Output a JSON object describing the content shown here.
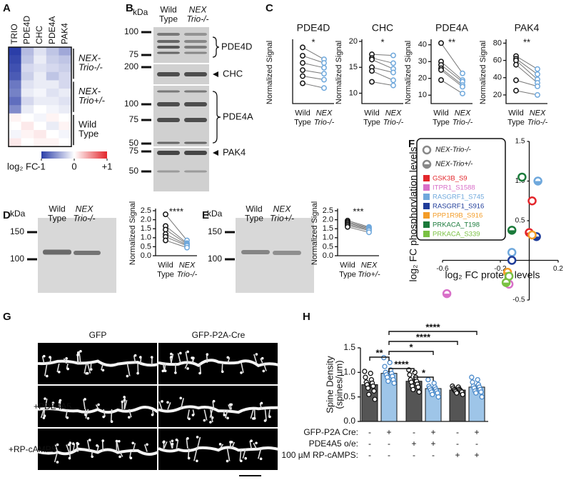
{
  "panel_labels": [
    "A",
    "B",
    "C",
    "D",
    "E",
    "F",
    "G",
    "H"
  ],
  "heatmap": {
    "columns": [
      "TRIO",
      "PDE4D",
      "CHC",
      "PDE4A",
      "PAK4"
    ],
    "groups": [
      {
        "label": "NEX-Trio-/-",
        "rows": [
          [
            -1,
            -0.35,
            -0.15,
            -0.3,
            -0.45
          ],
          [
            -0.95,
            -0.3,
            -0.1,
            -0.25,
            -0.3
          ],
          [
            -0.9,
            -0.2,
            -0.15,
            -0.2,
            -0.25
          ],
          [
            -0.85,
            -0.25,
            -0.1,
            -0.3,
            -0.2
          ]
        ]
      },
      {
        "label": "NEX-Trio+/-",
        "rows": [
          [
            -0.7,
            -0.15,
            -0.1,
            -0.1,
            -0.2
          ],
          [
            -0.65,
            -0.1,
            -0.05,
            -0.15,
            -0.1
          ],
          [
            -0.75,
            -0.2,
            -0.1,
            -0.1,
            -0.15
          ],
          [
            -0.6,
            -0.1,
            0,
            -0.05,
            -0.1
          ]
        ]
      },
      {
        "label": "Wild Type",
        "rows": [
          [
            0.05,
            0,
            -0.05,
            0.05,
            0
          ],
          [
            0,
            0.1,
            0,
            -0.1,
            0.05
          ],
          [
            -0.05,
            0.05,
            0.1,
            0,
            -0.05
          ],
          [
            0.1,
            0,
            0.05,
            0.05,
            0
          ]
        ]
      }
    ],
    "colorbar": {
      "label": "log₂ FC",
      "clim": [
        -1,
        1
      ],
      "ticks": [
        -1,
        0,
        {
          "value": 1,
          "label": "+1"
        }
      ]
    }
  },
  "blot_b": {
    "kda": "kDa",
    "lanes": [
      "Wild Type",
      "NEX Trio-/-"
    ],
    "markers": [
      100,
      75,
      200,
      100,
      75,
      50,
      75,
      50
    ],
    "proteins": [
      "PDE4D",
      "CHC",
      "PDE4A",
      "PAK4"
    ]
  },
  "blot_d": {
    "kda": "kDa",
    "lanes": [
      "Wild Type",
      "NEX Trio-/-"
    ],
    "markers": [
      150,
      100
    ]
  },
  "blot_e": {
    "kda": "kDa",
    "lanes": [
      "Wild Type",
      "NEX Trio+/-"
    ],
    "markers": [
      150,
      100
    ]
  },
  "images_g": {
    "columns": [
      "GFP",
      "GFP-P2A-Cre"
    ],
    "rows": [
      "+PDE4A5",
      "+RP-cAMPS"
    ]
  },
  "chart_data": [
    {
      "type": "paired",
      "title": "PDE4D",
      "ylabel": "Normalized Signal",
      "ylim": [
        10,
        62
      ],
      "annotation": "*",
      "series": [
        {
          "name": "Wild Type",
          "color": "#111111",
          "values": [
            57,
            50,
            44,
            38,
            33,
            27
          ]
        },
        {
          "name": "NEX Trio-/-",
          "color": "#6fa8dc",
          "values": [
            47,
            44,
            40,
            35,
            30,
            23
          ]
        }
      ]
    },
    {
      "type": "paired",
      "title": "CHC",
      "ylabel": "Normalized Signal",
      "ylim": [
        8,
        20
      ],
      "yticks": [
        10,
        15,
        20
      ],
      "annotation": "*",
      "series": [
        {
          "name": "Wild Type",
          "color": "#111111",
          "values": [
            17.5,
            16.8,
            16.5,
            15,
            14.3,
            12.2
          ]
        },
        {
          "name": "NEX Trio-/-",
          "color": "#6fa8dc",
          "values": [
            17.3,
            15.8,
            14.7,
            14,
            12.5,
            11.5
          ]
        }
      ]
    },
    {
      "type": "paired",
      "title": "PDE4A",
      "ylabel": "Normalized Signal",
      "ylim": [
        5,
        42
      ],
      "yticks": [
        10,
        20,
        30,
        40
      ],
      "annotation": "**",
      "series": [
        {
          "name": "Wild Type",
          "color": "#111111",
          "values": [
            41,
            30,
            28,
            26,
            25,
            19
          ]
        },
        {
          "name": "NEX Trio-/-",
          "color": "#6fa8dc",
          "values": [
            23,
            19,
            18,
            16,
            15,
            11
          ]
        }
      ]
    },
    {
      "type": "paired",
      "title": "PAK4",
      "ylabel": "Normalized Signal",
      "ylim": [
        10,
        82
      ],
      "yticks": [
        20,
        40,
        60,
        80
      ],
      "annotation": "**",
      "series": [
        {
          "name": "Wild Type",
          "color": "#111111",
          "values": [
            65,
            62,
            60,
            55,
            37,
            25
          ]
        },
        {
          "name": "NEX Trio-/-",
          "color": "#6fa8dc",
          "values": [
            50,
            44,
            38,
            34,
            30,
            20
          ]
        }
      ]
    },
    {
      "type": "paired",
      "ylabel": "Normalized Signal",
      "ylim": [
        0,
        2.5
      ],
      "yticks": [
        {
          "value": 0,
          "label": "0.0"
        },
        0.5,
        {
          "value": 1,
          "label": "1.0"
        },
        1.5,
        {
          "value": 2,
          "label": "2.0"
        },
        2.5
      ],
      "annotation": "****",
      "series": [
        {
          "name": "Wild Type",
          "color": "#111111",
          "values": [
            2.3,
            1.65,
            1.45,
            1.2,
            1.05,
            0.85
          ]
        },
        {
          "name": "NEX Trio-/-",
          "color": "#6fa8dc",
          "values": [
            0.85,
            0.7,
            0.65,
            0.6,
            0.55,
            0.45
          ]
        }
      ]
    },
    {
      "type": "paired",
      "ylabel": "Normalized Signal",
      "ylim": [
        0,
        2.5
      ],
      "yticks": [
        {
          "value": 0,
          "label": "0.0"
        },
        0.5,
        {
          "value": 1,
          "label": "1.0"
        },
        1.5,
        {
          "value": 2,
          "label": "2.0"
        },
        2.5
      ],
      "annotation": "***",
      "series": [
        {
          "name": "Wild Type",
          "color": "#111111",
          "values": [
            1.95,
            1.88,
            1.82,
            1.75,
            1.68,
            1.6
          ]
        },
        {
          "name": "NEX Trio+/-",
          "color": "#6fa8dc",
          "values": [
            1.6,
            1.55,
            1.5,
            1.45,
            1.4,
            1.3
          ]
        }
      ]
    },
    {
      "type": "scatter",
      "xlabel": "log₂ FC protein levels",
      "ylabel": "log₂ FC phosphorylation levels",
      "xlim": [
        -0.6,
        0.2
      ],
      "ylim": [
        -0.5,
        1.5
      ],
      "xticks": [
        -0.6,
        -0.2,
        0.2
      ],
      "yticks": [
        -0.5,
        0.5,
        {
          "value": 1,
          "label": "1.0"
        },
        1.5
      ],
      "genotypes": [
        "NEX-Trio-/-",
        "NEX-Trio+/-"
      ],
      "series": [
        {
          "name": "GSK3B_S9",
          "color": "#e3262b",
          "x": [
            0.02,
            0.0
          ],
          "y": [
            0.75,
            0.35
          ]
        },
        {
          "name": "ITPR1_S1588",
          "color": "#d86fc8",
          "x": [
            -0.14,
            -0.57
          ],
          "y": [
            -0.3,
            -0.42
          ]
        },
        {
          "name": "RASGRF1_S745",
          "color": "#6fa8dc",
          "x": [
            -0.12,
            0.06
          ],
          "y": [
            0.1,
            1.0
          ]
        },
        {
          "name": "RASGRF1_S916",
          "color": "#1f3c99",
          "x": [
            -0.12,
            0.05
          ],
          "y": [
            0.0,
            0.3
          ]
        },
        {
          "name": "PPP1R9B_S916",
          "color": "#f39c27",
          "x": [
            0.02,
            -0.15
          ],
          "y": [
            0.32,
            -0.15
          ]
        },
        {
          "name": "PRKACA_T198",
          "color": "#1a7a3a",
          "x": [
            -0.05,
            -0.12
          ],
          "y": [
            1.05,
            0.38
          ]
        },
        {
          "name": "PRKACA_S339",
          "color": "#7ac143",
          "x": [
            -0.14,
            -0.16
          ],
          "y": [
            -0.2,
            -0.28
          ]
        }
      ]
    },
    {
      "type": "bar",
      "ylabel": "Spine Density (spines/µm)",
      "ylim": [
        0,
        1.5
      ],
      "yticks": [
        {
          "value": 0,
          "label": "0.0"
        },
        0.5,
        {
          "value": 1,
          "label": "1.0"
        },
        1.5
      ],
      "colors": [
        "#555555",
        "#9ec5e8",
        "#555555",
        "#9ec5e8",
        "#555555",
        "#9ec5e8"
      ],
      "values": [
        0.75,
        0.98,
        0.82,
        0.67,
        0.64,
        0.7
      ],
      "errors": [
        0.05,
        0.04,
        0.04,
        0.03,
        0.02,
        0.04
      ],
      "points": [
        [
          1.02,
          0.98,
          0.9,
          0.85,
          0.8,
          0.78,
          0.75,
          0.72,
          0.68,
          0.62,
          0.55,
          0.45
        ],
        [
          1.3,
          1.2,
          1.12,
          1.05,
          1.0,
          0.98,
          0.95,
          0.92,
          0.9,
          0.85,
          0.82,
          0.78
        ],
        [
          1.05,
          1.0,
          0.95,
          0.9,
          0.85,
          0.82,
          0.8,
          0.76,
          0.72,
          0.7,
          0.65,
          0.6
        ],
        [
          0.85,
          0.78,
          0.72,
          0.7,
          0.68,
          0.66,
          0.64,
          0.62,
          0.6,
          0.58,
          0.55,
          0.5
        ],
        [
          0.72,
          0.7,
          0.68,
          0.66,
          0.65,
          0.64,
          0.63,
          0.62,
          0.61,
          0.6,
          0.58,
          0.55
        ],
        [
          0.9,
          0.85,
          0.8,
          0.75,
          0.72,
          0.7,
          0.68,
          0.65,
          0.62,
          0.6,
          0.58,
          0.5
        ]
      ],
      "conditions": [
        {
          "label": "GFP-P2A Cre:",
          "signs": [
            "-",
            "+",
            "-",
            "+",
            "-",
            "+"
          ]
        },
        {
          "label": "PDE4A5 o/e:",
          "signs": [
            "-",
            "-",
            "+",
            "+",
            "-",
            "-"
          ]
        },
        {
          "label": "100 µM RP-cAMPS:",
          "signs": [
            "-",
            "-",
            "-",
            "-",
            "+",
            "+"
          ]
        }
      ],
      "brackets": [
        {
          "from": 1,
          "to": 5,
          "label": "****"
        },
        {
          "from": 1,
          "to": 4,
          "label": "****"
        },
        {
          "from": 1,
          "to": 3,
          "label": "*"
        },
        {
          "from": 0,
          "to": 1,
          "label": "**"
        },
        {
          "from": 1,
          "to": 2,
          "label": "****"
        },
        {
          "from": 2,
          "to": 3,
          "label": "*"
        }
      ]
    }
  ]
}
